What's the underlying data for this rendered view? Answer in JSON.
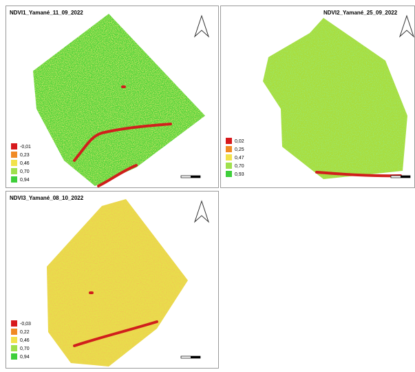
{
  "panels": [
    {
      "title": "NDVI1_Yamané_11_09_2022",
      "legend": [
        {
          "label": "-0,01",
          "color": "#d7191c"
        },
        {
          "label": "0,23",
          "color": "#f08a24"
        },
        {
          "label": "0,46",
          "color": "#f2e24a"
        },
        {
          "label": "0,70",
          "color": "#9fe04c"
        },
        {
          "label": "0,94",
          "color": "#3ecf3a"
        }
      ]
    },
    {
      "title": "NDVI2_Yamané_25_09_2022",
      "legend": [
        {
          "label": "0,02",
          "color": "#d7191c"
        },
        {
          "label": "0,25",
          "color": "#f08a24"
        },
        {
          "label": "0,47",
          "color": "#f2e24a"
        },
        {
          "label": "0,70",
          "color": "#9fe04c"
        },
        {
          "label": "0,93",
          "color": "#3ecf3a"
        }
      ]
    },
    {
      "title": "NDVI3_Yamané_08_10_2022",
      "legend": [
        {
          "label": "-0,03",
          "color": "#d7191c"
        },
        {
          "label": "0,22",
          "color": "#f08a24"
        },
        {
          "label": "0,46",
          "color": "#f2e24a"
        },
        {
          "label": "0,70",
          "color": "#9fe04c"
        },
        {
          "label": "0,94",
          "color": "#3ecf3a"
        }
      ]
    }
  ]
}
